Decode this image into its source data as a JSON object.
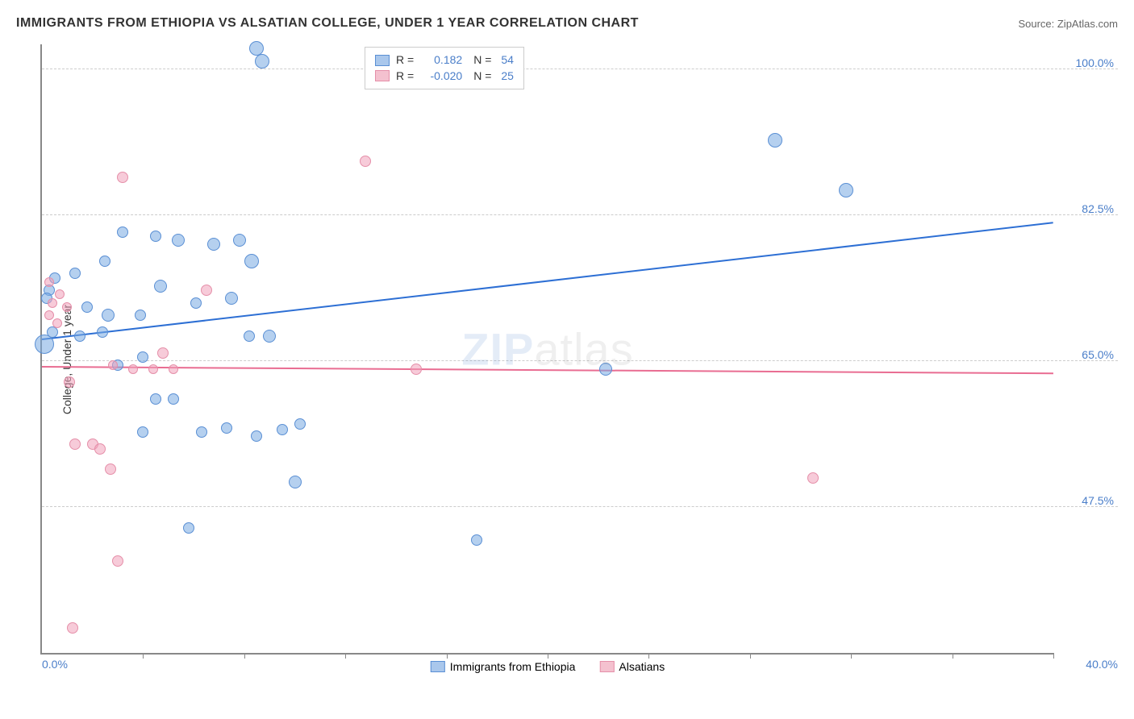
{
  "header": {
    "title": "IMMIGRANTS FROM ETHIOPIA VS ALSATIAN COLLEGE, UNDER 1 YEAR CORRELATION CHART",
    "source": "Source: ZipAtlas.com"
  },
  "chart": {
    "type": "scatter",
    "y_axis_label": "College, Under 1 year",
    "x_min": 0.0,
    "x_max": 40.0,
    "x_min_label": "0.0%",
    "x_max_label": "40.0%",
    "x_ticks": [
      0,
      4,
      8,
      12,
      16,
      20,
      24,
      28,
      32,
      36,
      40
    ],
    "y_min": 30.0,
    "y_max": 103.0,
    "gridlines": [
      {
        "value": 100.0,
        "label": "100.0%"
      },
      {
        "value": 82.5,
        "label": "82.5%"
      },
      {
        "value": 65.0,
        "label": "65.0%"
      },
      {
        "value": 47.5,
        "label": "47.5%"
      }
    ],
    "series": [
      {
        "name": "Immigrants from Ethiopia",
        "swatch_fill": "#a9c7ec",
        "swatch_border": "#5a8fd4",
        "point_fill": "rgba(120, 170, 225, 0.55)",
        "point_border": "#5a8fd4",
        "trend_color": "#2d6fd4",
        "r_value": "0.182",
        "n_value": "54",
        "trend": {
          "x1": 0,
          "y1": 67.5,
          "x2": 40,
          "y2": 81.5
        },
        "points": [
          {
            "x": 8.5,
            "y": 102.5,
            "r": 9
          },
          {
            "x": 8.7,
            "y": 101.0,
            "r": 9
          },
          {
            "x": 29.0,
            "y": 91.5,
            "r": 9
          },
          {
            "x": 31.8,
            "y": 85.5,
            "r": 9
          },
          {
            "x": 3.2,
            "y": 80.5,
            "r": 7
          },
          {
            "x": 4.5,
            "y": 80.0,
            "r": 7
          },
          {
            "x": 5.4,
            "y": 79.5,
            "r": 8
          },
          {
            "x": 6.8,
            "y": 79.0,
            "r": 8
          },
          {
            "x": 7.8,
            "y": 79.5,
            "r": 8
          },
          {
            "x": 8.3,
            "y": 77.0,
            "r": 9
          },
          {
            "x": 2.5,
            "y": 77.0,
            "r": 7
          },
          {
            "x": 1.3,
            "y": 75.5,
            "r": 7
          },
          {
            "x": 0.5,
            "y": 75.0,
            "r": 7
          },
          {
            "x": 4.7,
            "y": 74.0,
            "r": 8
          },
          {
            "x": 7.5,
            "y": 72.5,
            "r": 8
          },
          {
            "x": 6.1,
            "y": 72.0,
            "r": 7
          },
          {
            "x": 0.3,
            "y": 73.5,
            "r": 7
          },
          {
            "x": 0.2,
            "y": 72.5,
            "r": 7
          },
          {
            "x": 1.8,
            "y": 71.5,
            "r": 7
          },
          {
            "x": 2.6,
            "y": 70.5,
            "r": 8
          },
          {
            "x": 3.9,
            "y": 70.5,
            "r": 7
          },
          {
            "x": 0.4,
            "y": 68.5,
            "r": 7
          },
          {
            "x": 1.5,
            "y": 68.0,
            "r": 7
          },
          {
            "x": 2.4,
            "y": 68.5,
            "r": 7
          },
          {
            "x": 8.2,
            "y": 68.0,
            "r": 7
          },
          {
            "x": 9.0,
            "y": 68.0,
            "r": 8
          },
          {
            "x": 0.1,
            "y": 67.0,
            "r": 12
          },
          {
            "x": 4.0,
            "y": 65.5,
            "r": 7
          },
          {
            "x": 3.0,
            "y": 64.5,
            "r": 7
          },
          {
            "x": 22.3,
            "y": 64.0,
            "r": 8
          },
          {
            "x": 4.5,
            "y": 60.5,
            "r": 7
          },
          {
            "x": 5.2,
            "y": 60.5,
            "r": 7
          },
          {
            "x": 4.0,
            "y": 56.5,
            "r": 7
          },
          {
            "x": 6.3,
            "y": 56.5,
            "r": 7
          },
          {
            "x": 8.5,
            "y": 56.0,
            "r": 7
          },
          {
            "x": 7.3,
            "y": 57.0,
            "r": 7
          },
          {
            "x": 9.5,
            "y": 56.8,
            "r": 7
          },
          {
            "x": 10.2,
            "y": 57.5,
            "r": 7
          },
          {
            "x": 10.0,
            "y": 50.5,
            "r": 8
          },
          {
            "x": 5.8,
            "y": 45.0,
            "r": 7
          },
          {
            "x": 17.2,
            "y": 43.5,
            "r": 7
          }
        ]
      },
      {
        "name": "Alsatians",
        "swatch_fill": "#f4c1cf",
        "swatch_border": "#e58fa9",
        "point_fill": "rgba(240, 160, 185, 0.55)",
        "point_border": "#e58fa9",
        "trend_color": "#e96d92",
        "r_value": "-0.020",
        "n_value": "25",
        "trend": {
          "x1": 0,
          "y1": 64.2,
          "x2": 40,
          "y2": 63.4
        },
        "points": [
          {
            "x": 3.2,
            "y": 87.0,
            "r": 7
          },
          {
            "x": 12.8,
            "y": 89.0,
            "r": 7
          },
          {
            "x": 0.3,
            "y": 74.5,
            "r": 6
          },
          {
            "x": 0.7,
            "y": 73.0,
            "r": 6
          },
          {
            "x": 0.4,
            "y": 72.0,
            "r": 6
          },
          {
            "x": 1.0,
            "y": 71.5,
            "r": 6
          },
          {
            "x": 6.5,
            "y": 73.5,
            "r": 7
          },
          {
            "x": 0.6,
            "y": 69.5,
            "r": 6
          },
          {
            "x": 0.3,
            "y": 70.5,
            "r": 6
          },
          {
            "x": 4.8,
            "y": 66.0,
            "r": 7
          },
          {
            "x": 2.8,
            "y": 64.5,
            "r": 6
          },
          {
            "x": 3.6,
            "y": 64.0,
            "r": 6
          },
          {
            "x": 4.4,
            "y": 64.0,
            "r": 6
          },
          {
            "x": 5.2,
            "y": 64.0,
            "r": 6
          },
          {
            "x": 14.8,
            "y": 64.0,
            "r": 7
          },
          {
            "x": 1.1,
            "y": 62.5,
            "r": 7
          },
          {
            "x": 1.3,
            "y": 55.0,
            "r": 7
          },
          {
            "x": 2.0,
            "y": 55.0,
            "r": 7
          },
          {
            "x": 2.3,
            "y": 54.5,
            "r": 7
          },
          {
            "x": 2.7,
            "y": 52.0,
            "r": 7
          },
          {
            "x": 30.5,
            "y": 51.0,
            "r": 7
          },
          {
            "x": 3.0,
            "y": 41.0,
            "r": 7
          },
          {
            "x": 1.2,
            "y": 33.0,
            "r": 7
          }
        ]
      }
    ],
    "legend_top": {
      "r_label": "R =",
      "n_label": "N ="
    },
    "watermark": {
      "bold": "ZIP",
      "light": "atlas"
    },
    "colors": {
      "axis": "#888888",
      "grid": "#cccccc",
      "tick_text": "#4a7ec9",
      "title": "#333333"
    }
  }
}
